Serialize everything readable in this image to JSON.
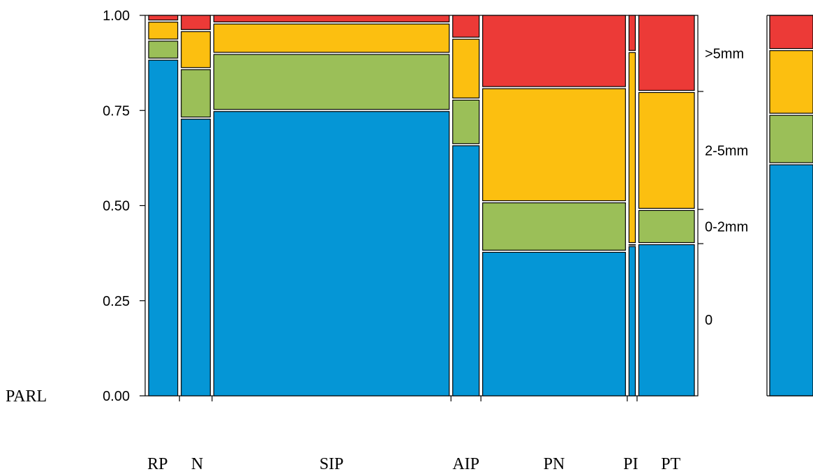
{
  "chart_data": {
    "type": "mosaic",
    "ylabel": "PARL",
    "ylim": [
      0,
      1
    ],
    "yticks": [
      "0.00",
      "0.25",
      "0.50",
      "0.75",
      "1.00"
    ],
    "categories": [
      "RP",
      "N",
      "SIP",
      "AIP",
      "PN",
      "PI",
      "PT"
    ],
    "widths": [
      0.055,
      0.055,
      0.445,
      0.05,
      0.27,
      0.012,
      0.105
    ],
    "levels": [
      "0",
      "0-2mm",
      "2-5mm",
      ">5mm"
    ],
    "colors": [
      "#0596d6",
      "#9bbf58",
      "#fcbf10",
      "#ec3a37"
    ],
    "series": [
      {
        "name": "0",
        "values": [
          0.885,
          0.73,
          0.75,
          0.66,
          0.38,
          0.395,
          0.4
        ]
      },
      {
        "name": "0-2mm",
        "values": [
          0.05,
          0.13,
          0.15,
          0.12,
          0.13,
          0.005,
          0.09
        ]
      },
      {
        "name": "2-5mm",
        "values": [
          0.05,
          0.1,
          0.08,
          0.16,
          0.3,
          0.505,
          0.31
        ]
      },
      {
        "name": ">5mm",
        "values": [
          0.015,
          0.04,
          0.02,
          0.06,
          0.19,
          0.095,
          0.2
        ]
      }
    ],
    "marginal": [
      0.61,
      0.13,
      0.17,
      0.09
    ]
  }
}
